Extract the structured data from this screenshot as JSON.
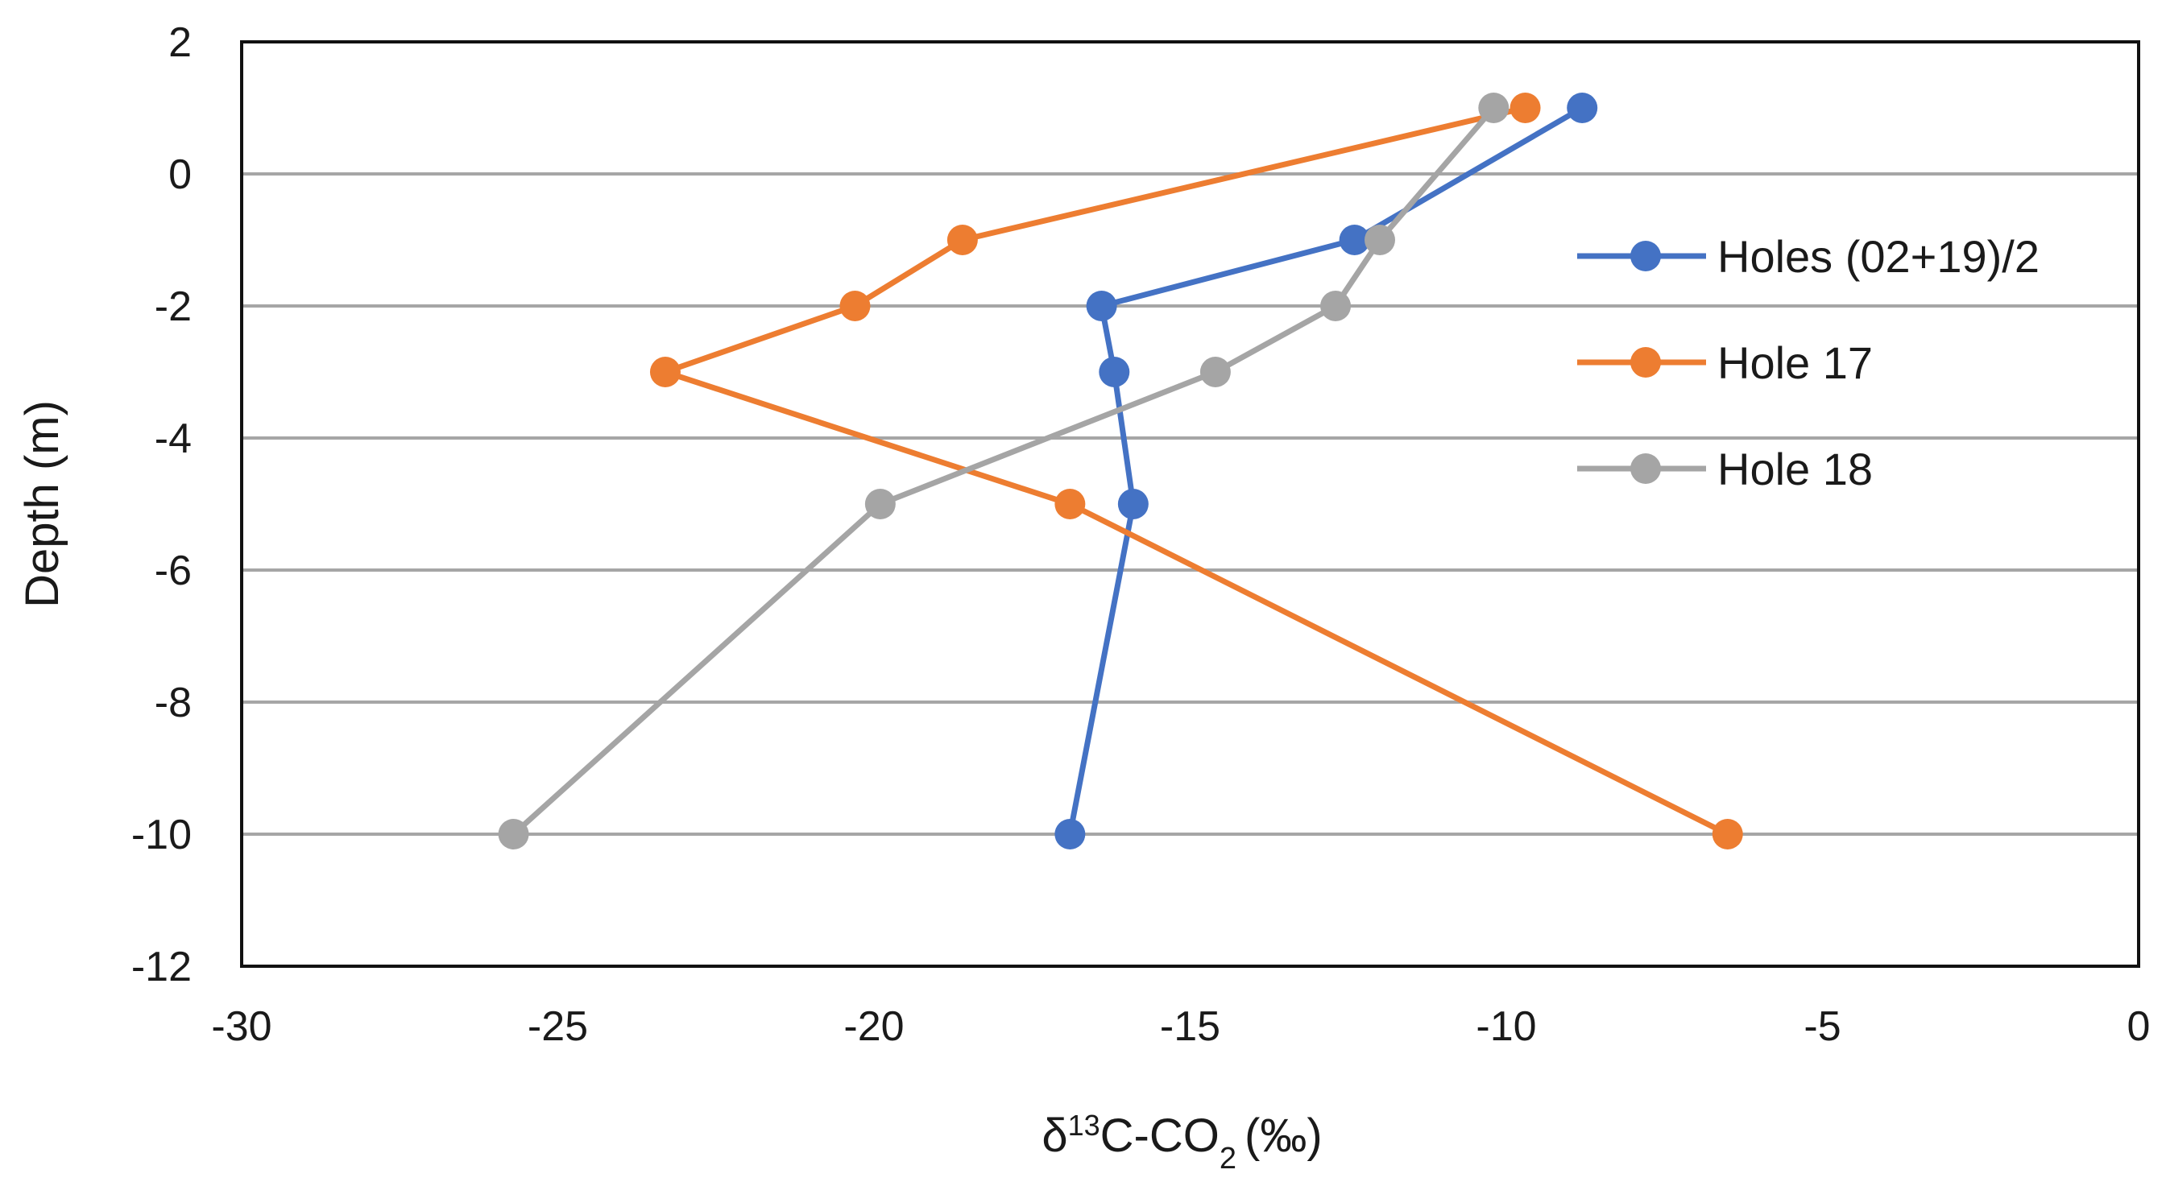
{
  "chart_data": {
    "type": "line",
    "title": "",
    "xlabel": {
      "delta": "δ",
      "mass": "13",
      "species": "C-CO",
      "subscript": "2",
      "unit": "(‰)"
    },
    "ylabel": "Depth (m)",
    "xlim": [
      -30,
      0
    ],
    "ylim": [
      -12,
      2
    ],
    "x_ticks": [
      -30,
      -25,
      -20,
      -15,
      -10,
      -5,
      0
    ],
    "y_ticks": [
      2,
      0,
      -2,
      -4,
      -6,
      -8,
      -10,
      -12
    ],
    "grid": "horizontal",
    "legend_position": "right",
    "series": [
      {
        "name": "Holes (02+19)/2",
        "color": "#4472C4",
        "points": [
          {
            "x": -8.8,
            "y": 1
          },
          {
            "x": -12.4,
            "y": -1
          },
          {
            "x": -16.4,
            "y": -2
          },
          {
            "x": -16.2,
            "y": -3
          },
          {
            "x": -15.9,
            "y": -5
          },
          {
            "x": -16.9,
            "y": -10
          }
        ]
      },
      {
        "name": "Hole 17",
        "color": "#ED7D31",
        "points": [
          {
            "x": -9.7,
            "y": 1
          },
          {
            "x": -18.6,
            "y": -1
          },
          {
            "x": -20.3,
            "y": -2
          },
          {
            "x": -23.3,
            "y": -3
          },
          {
            "x": -16.9,
            "y": -5
          },
          {
            "x": -6.5,
            "y": -10
          }
        ]
      },
      {
        "name": "Hole 18",
        "color": "#A5A5A5",
        "points": [
          {
            "x": -10.2,
            "y": 1
          },
          {
            "x": -12.0,
            "y": -1
          },
          {
            "x": -12.7,
            "y": -2
          },
          {
            "x": -14.6,
            "y": -3
          },
          {
            "x": -19.9,
            "y": -5
          },
          {
            "x": -25.7,
            "y": -10
          }
        ]
      }
    ]
  }
}
